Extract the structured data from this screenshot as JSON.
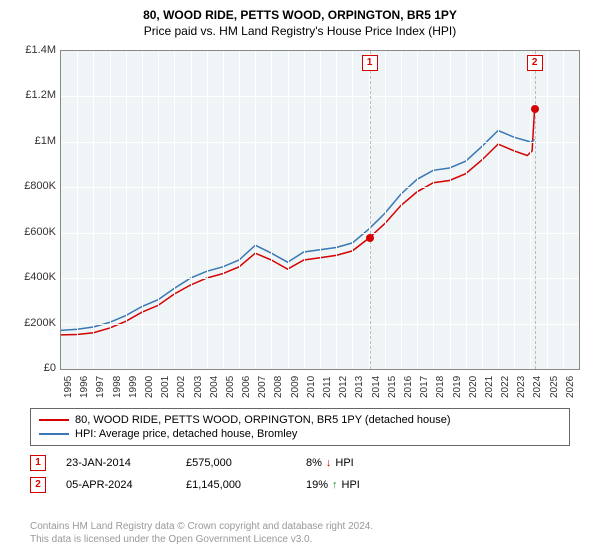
{
  "title": "80, WOOD RIDE, PETTS WOOD, ORPINGTON, BR5 1PY",
  "subtitle": "Price paid vs. HM Land Registry's House Price Index (HPI)",
  "chart": {
    "type": "line",
    "background_color": "#eff4f7",
    "grid_color": "#ffffff",
    "ylim": [
      0,
      1400000
    ],
    "y_ticks": [
      {
        "v": 0,
        "label": "£0"
      },
      {
        "v": 200000,
        "label": "£200K"
      },
      {
        "v": 400000,
        "label": "£400K"
      },
      {
        "v": 600000,
        "label": "£600K"
      },
      {
        "v": 800000,
        "label": "£800K"
      },
      {
        "v": 1000000,
        "label": "£1M"
      },
      {
        "v": 1200000,
        "label": "£1.2M"
      },
      {
        "v": 1400000,
        "label": "£1.4M"
      }
    ],
    "xlim": [
      1995,
      2027
    ],
    "x_ticks": [
      1995,
      1996,
      1997,
      1998,
      1999,
      2000,
      2001,
      2002,
      2003,
      2004,
      2005,
      2006,
      2007,
      2008,
      2009,
      2010,
      2011,
      2012,
      2013,
      2014,
      2015,
      2016,
      2017,
      2018,
      2019,
      2020,
      2021,
      2022,
      2023,
      2024,
      2025,
      2026
    ],
    "series": [
      {
        "name": "80, WOOD RIDE, PETTS WOOD, ORPINGTON, BR5 1PY (detached house)",
        "color": "#d60000",
        "line_width": 1.5,
        "data": [
          [
            1995,
            150000
          ],
          [
            1996,
            152000
          ],
          [
            1997,
            160000
          ],
          [
            1998,
            180000
          ],
          [
            1999,
            210000
          ],
          [
            2000,
            250000
          ],
          [
            2001,
            280000
          ],
          [
            2002,
            330000
          ],
          [
            2003,
            370000
          ],
          [
            2004,
            400000
          ],
          [
            2005,
            420000
          ],
          [
            2006,
            450000
          ],
          [
            2007,
            510000
          ],
          [
            2008,
            480000
          ],
          [
            2009,
            440000
          ],
          [
            2010,
            480000
          ],
          [
            2011,
            490000
          ],
          [
            2012,
            500000
          ],
          [
            2013,
            520000
          ],
          [
            2014,
            575000
          ],
          [
            2015,
            640000
          ],
          [
            2016,
            720000
          ],
          [
            2017,
            780000
          ],
          [
            2018,
            820000
          ],
          [
            2019,
            830000
          ],
          [
            2020,
            860000
          ],
          [
            2021,
            920000
          ],
          [
            2022,
            990000
          ],
          [
            2023,
            960000
          ],
          [
            2023.8,
            940000
          ],
          [
            2024.1,
            960000
          ],
          [
            2024.26,
            1145000
          ]
        ]
      },
      {
        "name": "HPI: Average price, detached house, Bromley",
        "color": "#3a78b5",
        "line_width": 1.5,
        "data": [
          [
            1995,
            170000
          ],
          [
            1996,
            175000
          ],
          [
            1997,
            185000
          ],
          [
            1998,
            205000
          ],
          [
            1999,
            235000
          ],
          [
            2000,
            275000
          ],
          [
            2001,
            305000
          ],
          [
            2002,
            355000
          ],
          [
            2003,
            400000
          ],
          [
            2004,
            430000
          ],
          [
            2005,
            450000
          ],
          [
            2006,
            480000
          ],
          [
            2007,
            545000
          ],
          [
            2008,
            510000
          ],
          [
            2009,
            470000
          ],
          [
            2010,
            515000
          ],
          [
            2011,
            525000
          ],
          [
            2012,
            535000
          ],
          [
            2013,
            555000
          ],
          [
            2014,
            615000
          ],
          [
            2015,
            685000
          ],
          [
            2016,
            770000
          ],
          [
            2017,
            835000
          ],
          [
            2018,
            875000
          ],
          [
            2019,
            885000
          ],
          [
            2020,
            915000
          ],
          [
            2021,
            980000
          ],
          [
            2022,
            1050000
          ],
          [
            2023,
            1020000
          ],
          [
            2024,
            1000000
          ],
          [
            2024.26,
            1010000
          ]
        ]
      }
    ],
    "event_lines": [
      {
        "x": 2014.06,
        "label": "1",
        "color": "#d60000"
      },
      {
        "x": 2024.26,
        "label": "2",
        "color": "#d60000"
      }
    ],
    "sale_points": [
      {
        "x": 2014.06,
        "y": 575000,
        "color": "#d60000"
      },
      {
        "x": 2024.26,
        "y": 1145000,
        "color": "#d60000"
      }
    ]
  },
  "legend": {
    "items": [
      {
        "color": "#d60000",
        "label": "80, WOOD RIDE, PETTS WOOD, ORPINGTON, BR5 1PY (detached house)"
      },
      {
        "color": "#3a78b5",
        "label": "HPI: Average price, detached house, Bromley"
      }
    ]
  },
  "sales": [
    {
      "marker": "1",
      "marker_color": "#d60000",
      "date": "23-JAN-2014",
      "price": "£575,000",
      "hpi_pct": "8%",
      "hpi_dir": "down",
      "hpi_suffix": "HPI"
    },
    {
      "marker": "2",
      "marker_color": "#d60000",
      "date": "05-APR-2024",
      "price": "£1,145,000",
      "hpi_pct": "19%",
      "hpi_dir": "up",
      "hpi_suffix": "HPI"
    }
  ],
  "footer": {
    "line1": "Contains HM Land Registry data © Crown copyright and database right 2024.",
    "line2": "This data is licensed under the Open Government Licence v3.0."
  }
}
